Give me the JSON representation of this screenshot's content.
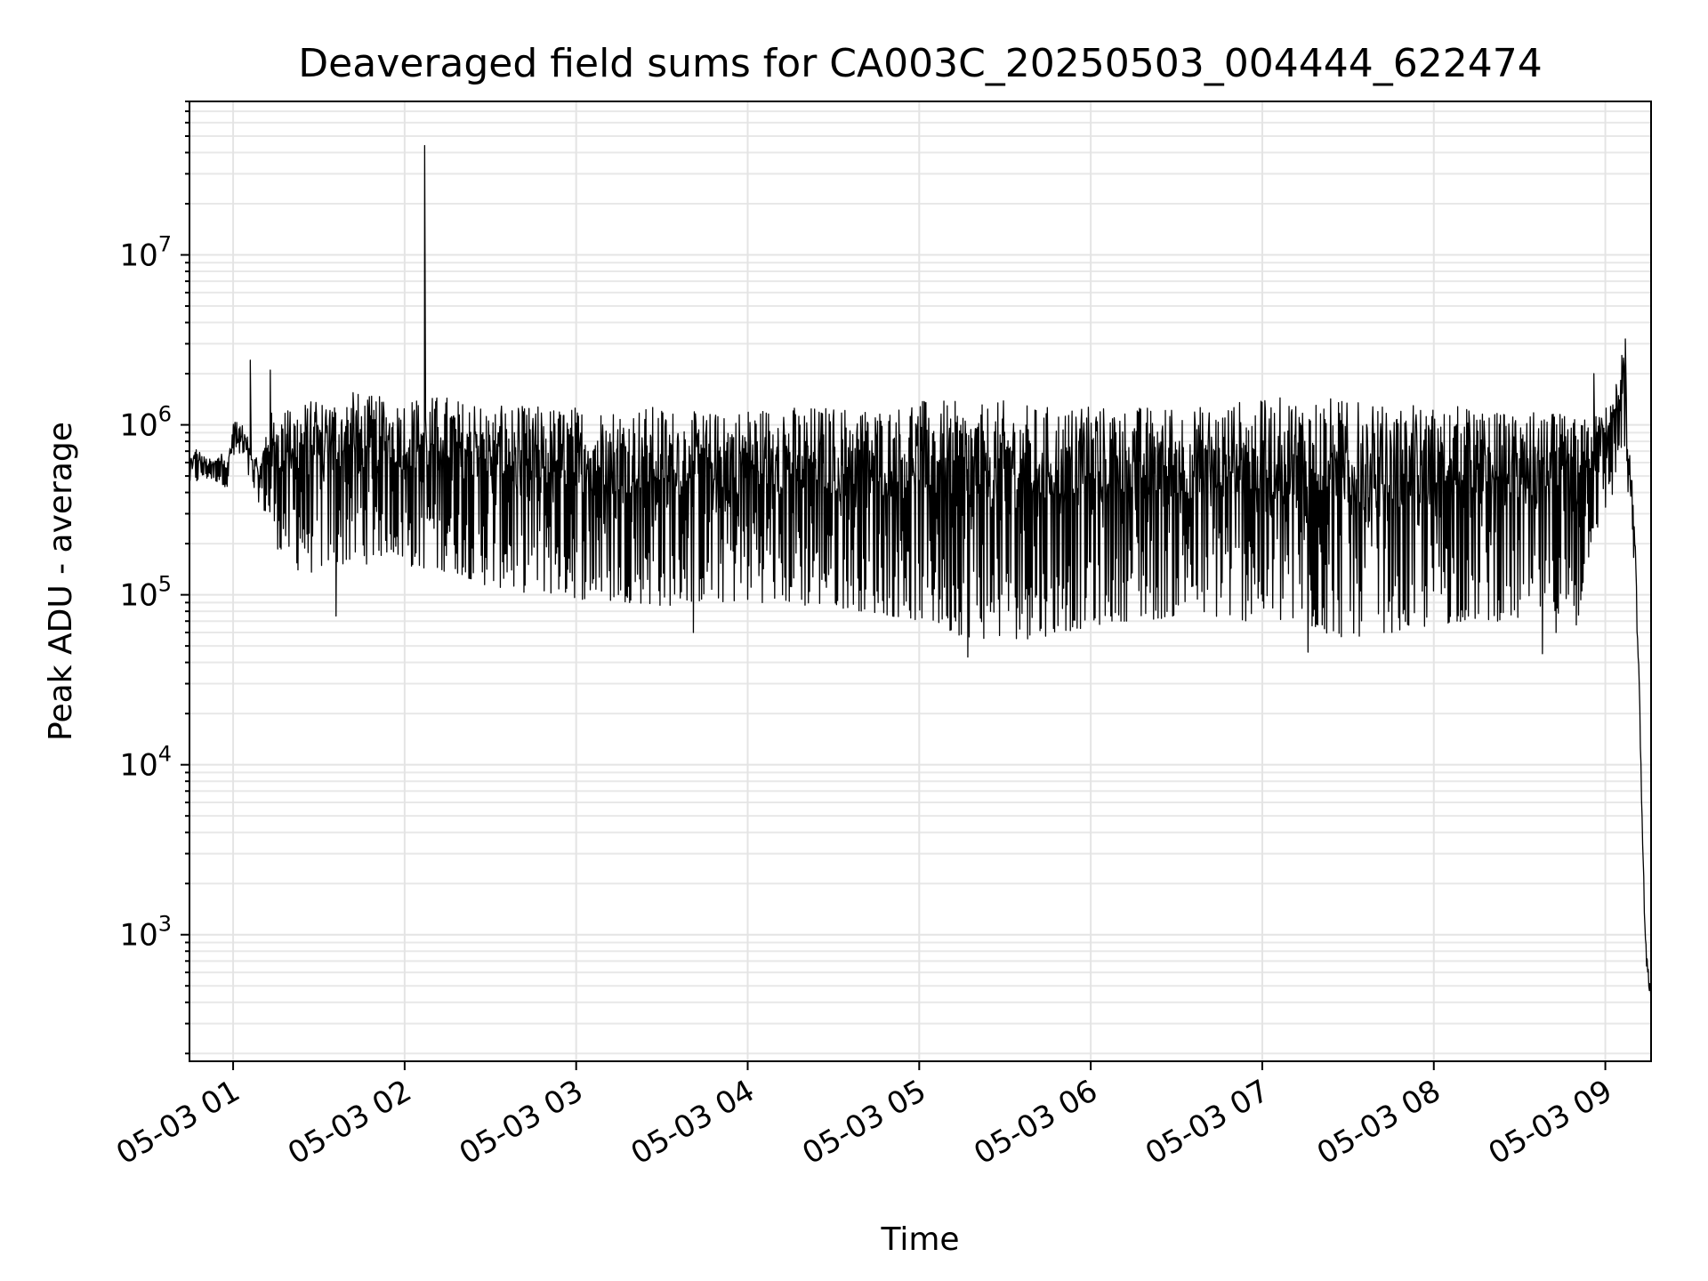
{
  "chart_data": {
    "type": "line",
    "title": "Deaveraged field sums for CA003C_20250503_004444_622474",
    "xlabel": "Time",
    "ylabel": "Peak ADU - average",
    "yscale": "log",
    "ylim": [
      180,
      80000000
    ],
    "xlim": [
      "2025-05-03 00:44:44",
      "2025-05-03 09:16:00"
    ],
    "x_ticks": [
      {
        "value": "2025-05-03 01:00",
        "label": "05-03 01"
      },
      {
        "value": "2025-05-03 02:00",
        "label": "05-03 02"
      },
      {
        "value": "2025-05-03 03:00",
        "label": "05-03 03"
      },
      {
        "value": "2025-05-03 04:00",
        "label": "05-03 04"
      },
      {
        "value": "2025-05-03 05:00",
        "label": "05-03 05"
      },
      {
        "value": "2025-05-03 06:00",
        "label": "05-03 06"
      },
      {
        "value": "2025-05-03 07:00",
        "label": "05-03 07"
      },
      {
        "value": "2025-05-03 08:00",
        "label": "05-03 08"
      },
      {
        "value": "2025-05-03 09:00",
        "label": "05-03 09"
      }
    ],
    "y_ticks": [
      {
        "value": 1000,
        "base": "10",
        "exp": "3"
      },
      {
        "value": 10000,
        "base": "10",
        "exp": "4"
      },
      {
        "value": 100000,
        "base": "10",
        "exp": "5"
      },
      {
        "value": 1000000,
        "base": "10",
        "exp": "6"
      },
      {
        "value": 10000000,
        "base": "10",
        "exp": "7"
      }
    ],
    "grid": true,
    "line_color": "#000000",
    "series": [
      {
        "x": [
          "2025-05-03 00:44:44",
          "2025-05-03 00:47:00",
          "2025-05-03 00:50:00",
          "2025-05-03 00:53:00",
          "2025-05-03 00:56:00",
          "2025-05-03 00:58:00",
          "2025-05-03 01:00:00",
          "2025-05-03 01:03:00",
          "2025-05-03 01:05:00",
          "2025-05-03 01:07:00",
          "2025-05-03 01:09:00",
          "2025-05-03 01:10:00",
          "2025-05-03 01:12:00",
          "2025-05-03 01:16:00",
          "2025-05-03 01:20:00",
          "2025-05-03 01:25:00",
          "2025-05-03 01:30:00",
          "2025-05-03 01:34:00",
          "2025-05-03 01:38:00",
          "2025-05-03 01:42:00",
          "2025-05-03 01:46:00",
          "2025-05-03 01:50:00",
          "2025-05-03 01:55:00",
          "2025-05-03 02:00:00",
          "2025-05-03 02:05:00",
          "2025-05-03 02:06:00",
          "2025-05-03 02:07:00",
          "2025-05-03 02:10:00",
          "2025-05-03 02:15:00",
          "2025-05-03 02:20:00",
          "2025-05-03 02:25:00",
          "2025-05-03 02:30:00",
          "2025-05-03 02:35:00",
          "2025-05-03 02:40:00",
          "2025-05-03 02:45:00",
          "2025-05-03 02:50:00",
          "2025-05-03 02:55:00",
          "2025-05-03 03:00:00",
          "2025-05-03 03:10:00",
          "2025-05-03 03:20:00",
          "2025-05-03 03:30:00",
          "2025-05-03 03:40:00",
          "2025-05-03 03:50:00",
          "2025-05-03 04:00:00",
          "2025-05-03 04:10:00",
          "2025-05-03 04:20:00",
          "2025-05-03 04:30:00",
          "2025-05-03 04:40:00",
          "2025-05-03 04:50:00",
          "2025-05-03 05:00:00",
          "2025-05-03 05:10:00",
          "2025-05-03 05:20:00",
          "2025-05-03 05:30:00",
          "2025-05-03 05:40:00",
          "2025-05-03 05:50:00",
          "2025-05-03 06:00:00",
          "2025-05-03 06:10:00",
          "2025-05-03 06:20:00",
          "2025-05-03 06:30:00",
          "2025-05-03 06:40:00",
          "2025-05-03 06:50:00",
          "2025-05-03 07:00:00",
          "2025-05-03 07:10:00",
          "2025-05-03 07:20:00",
          "2025-05-03 07:30:00",
          "2025-05-03 07:40:00",
          "2025-05-03 07:50:00",
          "2025-05-03 08:00:00",
          "2025-05-03 08:10:00",
          "2025-05-03 08:20:00",
          "2025-05-03 08:30:00",
          "2025-05-03 08:40:00",
          "2025-05-03 08:50:00",
          "2025-05-03 08:55:00",
          "2025-05-03 09:00:00",
          "2025-05-03 09:03:00",
          "2025-05-03 09:05:00",
          "2025-05-03 09:06:00",
          "2025-05-03 09:07:00",
          "2025-05-03 09:08:00",
          "2025-05-03 09:10:00",
          "2025-05-03 09:12:00",
          "2025-05-03 09:13:00",
          "2025-05-03 09:14:00",
          "2025-05-03 09:15:00",
          "2025-05-03 09:16:00"
        ],
        "y_upper": [
          600000,
          750000,
          650000,
          620000,
          700000,
          600000,
          1100000,
          1000000,
          900000,
          700000,
          600000,
          650000,
          1200000,
          1200000,
          1300000,
          1400000,
          1400000,
          1500000,
          1500000,
          1600000,
          1500000,
          1500000,
          1400000,
          1500000,
          1500000,
          1500000,
          1400000,
          1500000,
          1500000,
          1400000,
          1400000,
          1300000,
          1300000,
          1300000,
          1300000,
          1300000,
          1300000,
          1300000,
          1300000,
          1300000,
          1300000,
          1200000,
          1200000,
          1300000,
          1300000,
          1300000,
          1300000,
          1300000,
          1300000,
          1400000,
          1400000,
          1300000,
          1400000,
          1300000,
          1300000,
          1300000,
          1300000,
          1300000,
          1300000,
          1300000,
          1400000,
          1400000,
          1500000,
          1500000,
          1400000,
          1300000,
          1300000,
          1300000,
          1300000,
          1200000,
          1200000,
          1200000,
          1100000,
          1100000,
          1300000,
          1500000,
          2500000,
          3000000,
          2000000,
          800000,
          400000,
          25000,
          5000,
          1000,
          700,
          500
        ],
        "y_lower": [
          450000,
          450000,
          480000,
          470000,
          450000,
          420000,
          620000,
          600000,
          500000,
          400000,
          350000,
          350000,
          250000,
          180000,
          150000,
          130000,
          140000,
          150000,
          150000,
          150000,
          150000,
          160000,
          180000,
          150000,
          140000,
          150000,
          140000,
          130000,
          140000,
          130000,
          120000,
          110000,
          110000,
          100000,
          110000,
          100000,
          100000,
          95000,
          90000,
          90000,
          85000,
          90000,
          90000,
          90000,
          90000,
          85000,
          85000,
          80000,
          75000,
          70000,
          60000,
          55000,
          55000,
          55000,
          60000,
          65000,
          70000,
          70000,
          75000,
          75000,
          70000,
          70000,
          65000,
          60000,
          55000,
          60000,
          60000,
          65000,
          70000,
          70000,
          70000,
          60000,
          60000,
          200000,
          300000,
          400000,
          600000,
          800000,
          600000,
          300000,
          150000,
          20000,
          3000,
          700,
          550,
          350
        ],
        "spikes": [
          {
            "x": "2025-05-03 01:06:00",
            "y": 2400000
          },
          {
            "x": "2025-05-03 01:13:00",
            "y": 2100000
          },
          {
            "x": "2025-05-03 02:07:00",
            "y": 44000000
          },
          {
            "x": "2025-05-03 01:36:00",
            "y": 75000
          },
          {
            "x": "2025-05-03 03:41:00",
            "y": 60000
          },
          {
            "x": "2025-05-03 05:17:00",
            "y": 43000
          },
          {
            "x": "2025-05-03 07:16:00",
            "y": 46000
          },
          {
            "x": "2025-05-03 08:38:00",
            "y": 45000
          },
          {
            "x": "2025-05-03 08:56:00",
            "y": 2000000
          },
          {
            "x": "2025-05-03 09:07:00",
            "y": 3200000
          }
        ]
      }
    ]
  }
}
